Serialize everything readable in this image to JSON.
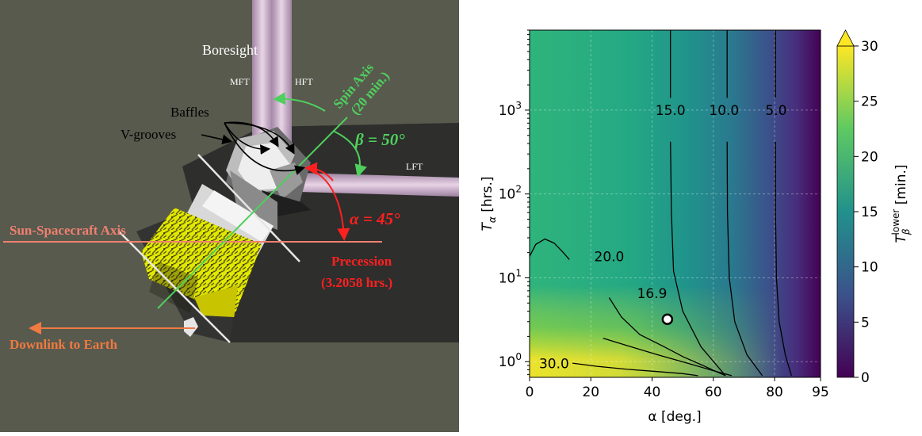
{
  "diagram": {
    "labels": {
      "boresight": "Boresight",
      "mft": "MFT",
      "hft": "HFT",
      "lft": "LFT",
      "spin_axis_line1": "Spin Axis",
      "spin_axis_line2": "(20 min.)",
      "beta": "β = 50°",
      "alpha": "α = 45°",
      "baffles": "Baffles",
      "vgrooves": "V-grooves",
      "sun_axis": "Sun-Spacecraft Axis",
      "precession_line1": "Precession",
      "precession_line2": "(3.2058 hrs.)",
      "downlink": "Downlink to Earth"
    },
    "colors": {
      "background": "#585a4e",
      "spin": "#4fcf5e",
      "red": "#ff2020",
      "salmon": "#f08070",
      "orange": "#f07a40",
      "beam": "#c9a7c9"
    }
  },
  "chart_data": {
    "type": "heatmap",
    "xlabel": "α [deg.]",
    "ylabel": "Tα [hrs.]",
    "ylabel_parts": {
      "main": "T",
      "sub": "α",
      "unit": " [hrs.]"
    },
    "xlim": [
      0,
      95
    ],
    "ylim": [
      0.65,
      9000
    ],
    "yscale": "log",
    "xticks": [
      "0",
      "20",
      "40",
      "60",
      "80",
      "95"
    ],
    "xtick_values": [
      0,
      20,
      40,
      60,
      80,
      95
    ],
    "yticks": [
      {
        "base": "10",
        "exp": "0",
        "value": 1
      },
      {
        "base": "10",
        "exp": "1",
        "value": 10
      },
      {
        "base": "10",
        "exp": "2",
        "value": 100
      },
      {
        "base": "10",
        "exp": "3",
        "value": 1000
      }
    ],
    "grid": true,
    "colorbar": {
      "label_parts": {
        "main": "T",
        "sub": "β",
        "sup": "lower",
        "unit": " [min.]"
      },
      "ticks": [
        "0",
        "5",
        "10",
        "15",
        "20",
        "25",
        "30"
      ],
      "tick_values": [
        0,
        5,
        10,
        15,
        20,
        25,
        30
      ],
      "range": [
        0,
        30
      ],
      "extend": "max",
      "colors": [
        "#440154",
        "#3b528b",
        "#21918c",
        "#5ec962",
        "#fde725"
      ]
    },
    "contour_labels": [
      {
        "text": "15.0",
        "x": 46,
        "y": 1000
      },
      {
        "text": "10.0",
        "x": 63.5,
        "y": 1000
      },
      {
        "text": "5.0",
        "x": 80.5,
        "y": 1000
      },
      {
        "text": "20.0",
        "x": 26,
        "y": 18
      },
      {
        "text": "16.9",
        "x": 40,
        "y": 6.5
      },
      {
        "text": "30.0",
        "x": 8,
        "y": 0.95
      }
    ],
    "contours": [
      {
        "level": 5.0,
        "points": [
          [
            80.3,
            9000
          ],
          [
            80.3,
            1400
          ]
        ],
        "points2": [
          [
            80.3,
            420
          ],
          [
            80.3,
            60
          ],
          [
            80.6,
            10
          ],
          [
            81.5,
            3
          ],
          [
            83.5,
            1.2
          ],
          [
            85.5,
            0.68
          ]
        ]
      },
      {
        "level": 10.0,
        "points": [
          [
            64.5,
            9000
          ],
          [
            64.5,
            1400
          ]
        ],
        "points2": [
          [
            64.5,
            420
          ],
          [
            64.6,
            60
          ],
          [
            65.2,
            10
          ],
          [
            67,
            3
          ],
          [
            71,
            1.2
          ],
          [
            76,
            0.68
          ]
        ]
      },
      {
        "level": 15.0,
        "points": [
          [
            46,
            9000
          ],
          [
            46,
            1400
          ]
        ],
        "points2": [
          [
            46,
            420
          ],
          [
            46.3,
            60
          ],
          [
            47,
            12
          ],
          [
            50,
            4
          ],
          [
            56,
            1.5
          ],
          [
            64,
            0.68
          ]
        ]
      },
      {
        "level": 16.9,
        "points": [
          [
            24,
            1.9
          ],
          [
            32,
            1.55
          ],
          [
            42,
            1.2
          ],
          [
            52,
            0.95
          ],
          [
            60,
            0.78
          ],
          [
            66,
            0.68
          ]
        ]
      },
      {
        "level": 20.0,
        "points": [
          [
            26,
            5.8
          ],
          [
            30,
            3.4
          ],
          [
            36,
            2.1
          ],
          [
            44,
            1.5
          ],
          [
            50,
            1.15
          ],
          [
            56,
            0.92
          ],
          [
            61,
            0.76
          ],
          [
            64,
            0.68
          ]
        ]
      },
      {
        "level": 30.0,
        "points": [
          [
            14,
            0.96
          ],
          [
            22,
            0.88
          ],
          [
            32,
            0.81
          ],
          [
            42,
            0.76
          ],
          [
            50,
            0.72
          ],
          [
            55,
            0.68
          ]
        ]
      },
      {
        "level": 20.0,
        "points": [
          [
            0,
            18
          ],
          [
            2,
            25
          ],
          [
            5,
            29
          ],
          [
            8,
            26
          ],
          [
            11,
            20
          ],
          [
            13,
            16.5
          ]
        ]
      }
    ],
    "marker": {
      "x": 45,
      "y": 3.2058,
      "label": "16.9"
    }
  }
}
